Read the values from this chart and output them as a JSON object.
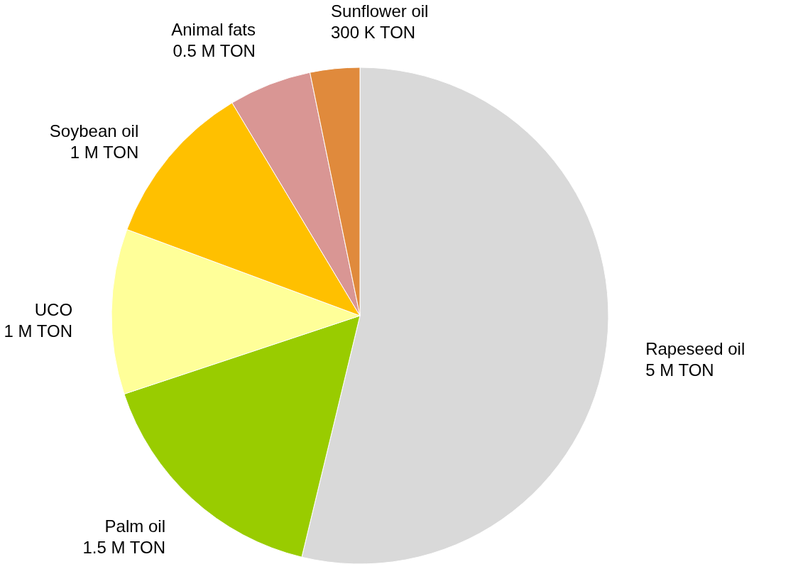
{
  "chart_data": {
    "type": "pie",
    "categories": [
      "Rapeseed oil",
      "Palm oil",
      "UCO",
      "Soybean oil",
      "Animal fats",
      "Sunflower oil"
    ],
    "values": [
      5,
      1.5,
      1,
      1,
      0.5,
      0.3
    ],
    "value_labels": [
      "5 M TON",
      "1.5  M TON",
      "1 M TON",
      "1 M TON",
      "0.5 M TON",
      "300 K TON"
    ],
    "colors": [
      "#d9d9d9",
      "#99cc00",
      "#ffff99",
      "#ffc000",
      "#d99694",
      "#e08a3c"
    ],
    "legend": false
  }
}
